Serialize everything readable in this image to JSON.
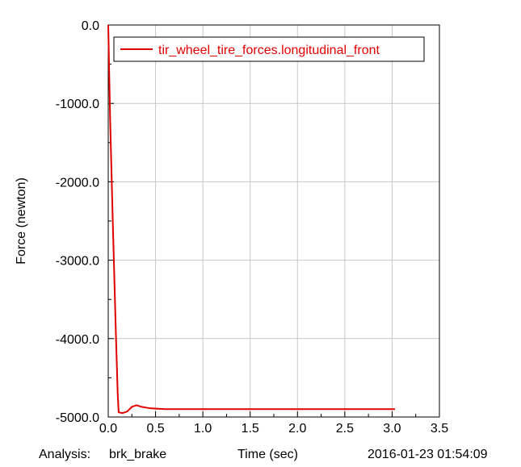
{
  "chart_data": {
    "type": "line",
    "ylabel": "Force (newton)",
    "xlabel": "Time (sec)",
    "xlim": [
      0.0,
      3.5
    ],
    "ylim": [
      -5000.0,
      0.0
    ],
    "x_ticks": [
      "0.0",
      "0.5",
      "1.0",
      "1.5",
      "2.0",
      "2.5",
      "3.0",
      "3.5"
    ],
    "y_ticks": [
      "0.0",
      "-1000.0",
      "-2000.0",
      "-3000.0",
      "-4000.0",
      "-5000.0"
    ],
    "grid": true,
    "legend_position": "top-right",
    "series": [
      {
        "name": "tir_wheel_tire_forces.longitudinal_front",
        "color": "#e00000",
        "points": [
          [
            0.0,
            0.0
          ],
          [
            0.02,
            -1200.0
          ],
          [
            0.05,
            -2600.0
          ],
          [
            0.08,
            -3900.0
          ],
          [
            0.1,
            -4700.0
          ],
          [
            0.11,
            -4940.0
          ],
          [
            0.15,
            -4950.0
          ],
          [
            0.2,
            -4930.0
          ],
          [
            0.25,
            -4870.0
          ],
          [
            0.3,
            -4850.0
          ],
          [
            0.35,
            -4870.0
          ],
          [
            0.45,
            -4890.0
          ],
          [
            0.6,
            -4900.0
          ],
          [
            1.0,
            -4900.0
          ],
          [
            2.0,
            -4900.0
          ],
          [
            3.0,
            -4900.0
          ],
          [
            3.03,
            -4900.0
          ]
        ]
      }
    ]
  },
  "footer": {
    "analysis_label": "Analysis:",
    "analysis_name": "brk_brake",
    "x_axis_title": "Time (sec)",
    "timestamp": "2016-01-23 01:54:09"
  }
}
